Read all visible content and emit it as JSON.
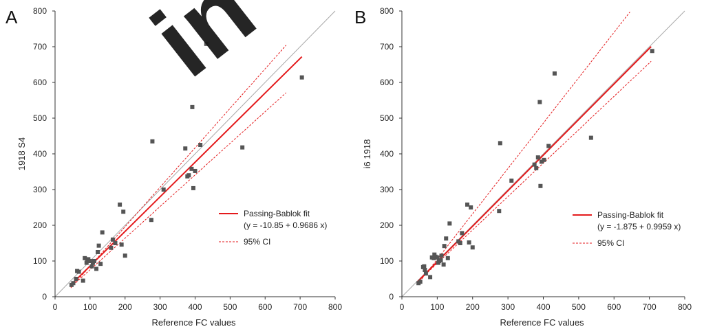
{
  "chart_data": [
    {
      "type": "scatter",
      "panel_label": "A",
      "xlabel": "Reference FC values",
      "ylabel": "1918 S4",
      "xlim": [
        0,
        800
      ],
      "ylim": [
        0,
        800
      ],
      "xticks": [
        0,
        100,
        200,
        300,
        400,
        500,
        600,
        700,
        800
      ],
      "yticks": [
        0,
        100,
        200,
        300,
        400,
        500,
        600,
        700,
        800
      ],
      "grid": false,
      "identity_line": true,
      "fit": {
        "name": "Passing-Bablok fit",
        "equation": "(y = -10.85 + 0.9686 x)",
        "intercept": -10.85,
        "slope": 0.9686,
        "x_range": [
          45,
          705
        ],
        "color": "#e41a1c"
      },
      "ci": {
        "name": "95% CI",
        "lower": {
          "intercept": -13,
          "slope": 0.885
        },
        "upper": {
          "intercept": -25,
          "slope": 1.105
        },
        "x_range": [
          45,
          660
        ],
        "color": "#e41a1c"
      },
      "legend_position": "center-right",
      "point_color": "#555555",
      "points": [
        [
          47,
          33
        ],
        [
          52,
          38
        ],
        [
          60,
          50
        ],
        [
          63,
          72
        ],
        [
          68,
          70
        ],
        [
          80,
          45
        ],
        [
          85,
          108
        ],
        [
          90,
          95
        ],
        [
          92,
          100
        ],
        [
          95,
          105
        ],
        [
          100,
          100
        ],
        [
          105,
          85
        ],
        [
          108,
          95
        ],
        [
          112,
          100
        ],
        [
          118,
          78
        ],
        [
          122,
          125
        ],
        [
          125,
          143
        ],
        [
          130,
          92
        ],
        [
          135,
          180
        ],
        [
          160,
          137
        ],
        [
          165,
          160
        ],
        [
          172,
          150
        ],
        [
          185,
          258
        ],
        [
          190,
          146
        ],
        [
          195,
          238
        ],
        [
          200,
          115
        ],
        [
          275,
          215
        ],
        [
          278,
          435
        ],
        [
          310,
          300
        ],
        [
          372,
          415
        ],
        [
          378,
          337
        ],
        [
          382,
          340
        ],
        [
          390,
          358
        ],
        [
          392,
          531
        ],
        [
          395,
          304
        ],
        [
          400,
          352
        ],
        [
          415,
          425
        ],
        [
          432,
          708
        ],
        [
          535,
          418
        ],
        [
          705,
          614
        ]
      ]
    },
    {
      "type": "scatter",
      "panel_label": "B",
      "xlabel": "Reference FC values",
      "ylabel": "i6 1918",
      "xlim": [
        0,
        800
      ],
      "ylim": [
        0,
        800
      ],
      "xticks": [
        0,
        100,
        200,
        300,
        400,
        500,
        600,
        700,
        800
      ],
      "yticks": [
        0,
        100,
        200,
        300,
        400,
        500,
        600,
        700,
        800
      ],
      "grid": false,
      "identity_line": true,
      "fit": {
        "name": "Passing-Bablok fit",
        "equation": "(y = -1.875 + 0.9959 x)",
        "intercept": -1.875,
        "slope": 0.9959,
        "x_range": [
          45,
          705
        ],
        "color": "#e41a1c"
      },
      "ci": {
        "name": "95% CI",
        "lower": {
          "intercept": 0,
          "slope": 0.935
        },
        "upper": {
          "intercept": -22,
          "slope": 1.27
        },
        "x_range": [
          45,
          705
        ],
        "upper_x_range": [
          45,
          645
        ],
        "color": "#e41a1c"
      },
      "legend_position": "center-right",
      "point_color": "#555555",
      "points": [
        [
          47,
          38
        ],
        [
          52,
          42
        ],
        [
          60,
          83
        ],
        [
          63,
          85
        ],
        [
          65,
          75
        ],
        [
          68,
          65
        ],
        [
          80,
          55
        ],
        [
          85,
          110
        ],
        [
          90,
          108
        ],
        [
          92,
          118
        ],
        [
          95,
          112
        ],
        [
          100,
          110
        ],
        [
          103,
          95
        ],
        [
          105,
          100
        ],
        [
          110,
          102
        ],
        [
          112,
          115
        ],
        [
          118,
          90
        ],
        [
          120,
          142
        ],
        [
          125,
          163
        ],
        [
          130,
          108
        ],
        [
          135,
          205
        ],
        [
          160,
          155
        ],
        [
          165,
          150
        ],
        [
          170,
          178
        ],
        [
          185,
          258
        ],
        [
          190,
          152
        ],
        [
          195,
          250
        ],
        [
          200,
          138
        ],
        [
          275,
          240
        ],
        [
          278,
          430
        ],
        [
          310,
          325
        ],
        [
          375,
          370
        ],
        [
          380,
          360
        ],
        [
          385,
          390
        ],
        [
          390,
          545
        ],
        [
          392,
          310
        ],
        [
          395,
          378
        ],
        [
          402,
          383
        ],
        [
          415,
          422
        ],
        [
          432,
          625
        ],
        [
          535,
          445
        ],
        [
          708,
          688
        ]
      ]
    }
  ],
  "watermark_text": "in"
}
